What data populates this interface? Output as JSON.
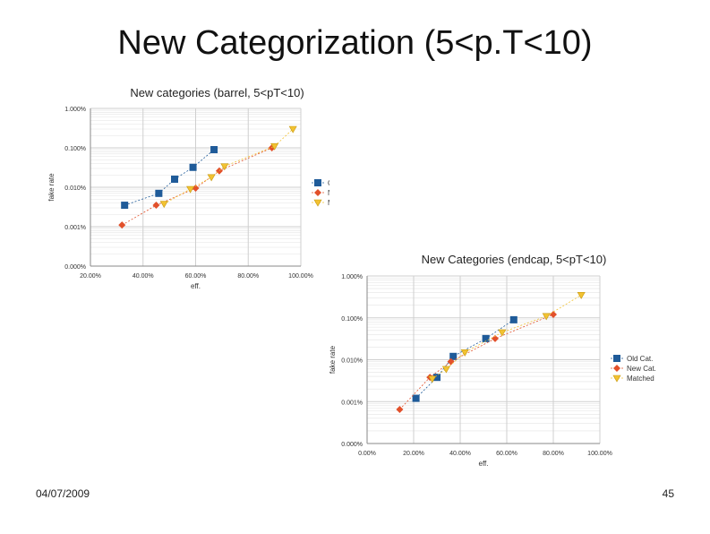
{
  "slide": {
    "title": "New Categorization (5<p.T<10)",
    "date": "04/07/2009",
    "page_number": "45"
  },
  "colors": {
    "old": "#1f5b99",
    "new": "#e2502a",
    "matched": "#f2c232",
    "grid": "#cfcfcf",
    "axis": "#888888"
  },
  "chart_data": [
    {
      "type": "scatter",
      "title": "New categories (barrel, 5<pT<10)",
      "xlabel": "eff.",
      "ylabel": "fake rate",
      "xlim": [
        20,
        100
      ],
      "ylim": [
        0.0001,
        1
      ],
      "yscale": "log",
      "xticks": [
        20,
        40,
        60,
        80,
        100
      ],
      "xtick_labels": [
        "20.00%",
        "40.00%",
        "60.00%",
        "80.00%",
        "100.00%"
      ],
      "yticks": [
        1,
        0.1,
        0.01,
        0.001,
        0.0001
      ],
      "ytick_labels": [
        "1.000%",
        "0.100%",
        "0.010%",
        "0.001%",
        "0.000%"
      ],
      "legend_position": "right",
      "series": [
        {
          "name": "Old Cat.",
          "marker": "square",
          "color_key": "old",
          "x": [
            33,
            46,
            52,
            59,
            67
          ],
          "y": [
            0.0035,
            0.007,
            0.016,
            0.032,
            0.09
          ]
        },
        {
          "name": "New Cat.",
          "marker": "diamond",
          "color_key": "new",
          "x": [
            32,
            45,
            60,
            69,
            89
          ],
          "y": [
            0.0011,
            0.0035,
            0.0095,
            0.026,
            0.1
          ]
        },
        {
          "name": "Matched",
          "marker": "triangle-down",
          "color_key": "matched",
          "x": [
            48,
            58,
            66,
            71,
            90,
            97
          ],
          "y": [
            0.0038,
            0.009,
            0.018,
            0.034,
            0.11,
            0.3
          ]
        }
      ]
    },
    {
      "type": "scatter",
      "title": "New Categories (endcap, 5<pT<10)",
      "xlabel": "eff.",
      "ylabel": "fake rate",
      "xlim": [
        0,
        100
      ],
      "ylim": [
        0.0001,
        1
      ],
      "yscale": "log",
      "xticks": [
        0,
        20,
        40,
        60,
        80,
        100
      ],
      "xtick_labels": [
        "0.00%",
        "20.00%",
        "40.00%",
        "60.00%",
        "80.00%",
        "100.00%"
      ],
      "yticks": [
        1,
        0.1,
        0.01,
        0.001,
        0.0001
      ],
      "ytick_labels": [
        "1.000%",
        "0.100%",
        "0.010%",
        "0.001%",
        "0.000%"
      ],
      "legend_position": "right",
      "series": [
        {
          "name": "Old Cat.",
          "marker": "square",
          "color_key": "old",
          "x": [
            21,
            30,
            37,
            51,
            63
          ],
          "y": [
            0.0012,
            0.0038,
            0.012,
            0.032,
            0.09
          ]
        },
        {
          "name": "New Cat.",
          "marker": "diamond",
          "color_key": "new",
          "x": [
            14,
            27,
            36,
            55,
            80
          ],
          "y": [
            0.00065,
            0.0038,
            0.009,
            0.032,
            0.12
          ]
        },
        {
          "name": "Matched",
          "marker": "triangle-down",
          "color_key": "matched",
          "x": [
            28,
            34,
            42,
            58,
            77,
            92
          ],
          "y": [
            0.0035,
            0.006,
            0.015,
            0.045,
            0.11,
            0.35
          ]
        }
      ]
    }
  ]
}
